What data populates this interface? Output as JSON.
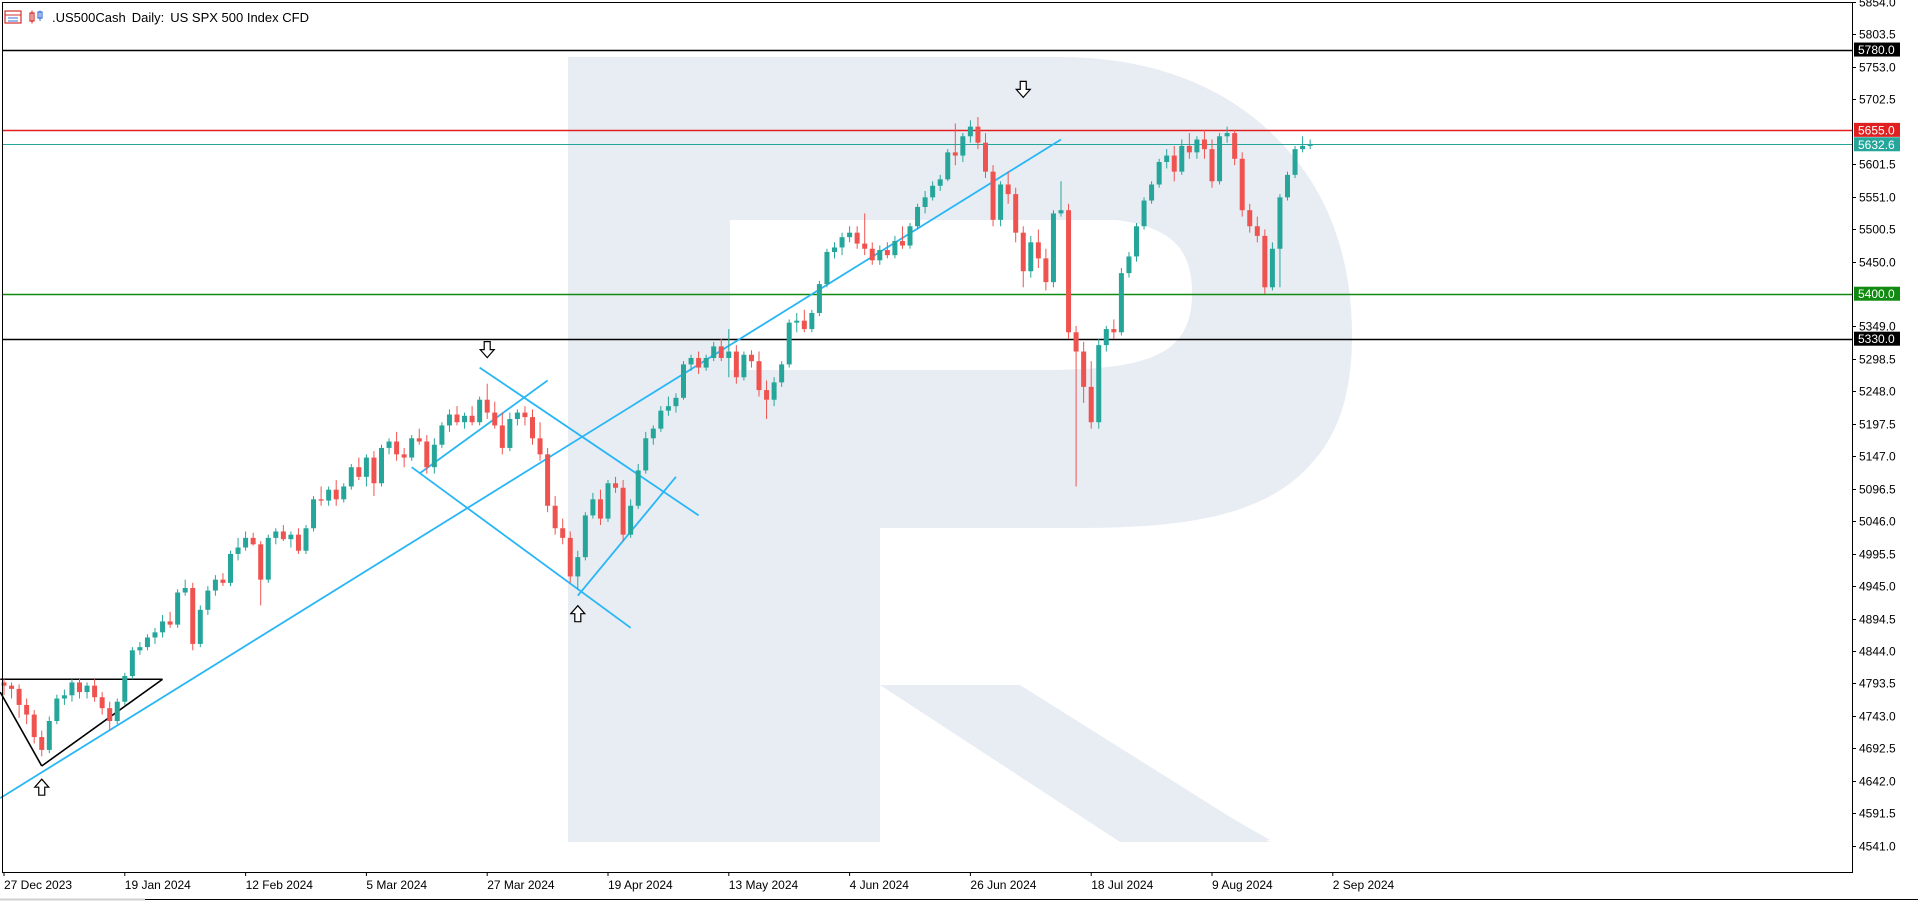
{
  "header": {
    "symbol": ".US500Cash",
    "timeframe": "Daily:",
    "description": "US SPX 500 Index CFD"
  },
  "chart_data": {
    "type": "candlestick",
    "symbol": ".US500Cash",
    "timeframe": "Daily",
    "ylim": [
      4500,
      5854
    ],
    "y_ticks": [
      "5854.0",
      "5803.5",
      "5753.0",
      "5702.5",
      "5601.5",
      "5551.0",
      "5500.5",
      "5450.0",
      "5349.0",
      "5298.5",
      "5248.0",
      "5197.5",
      "5147.0",
      "5096.5",
      "5046.0",
      "4995.5",
      "4945.0",
      "4894.5",
      "4844.0",
      "4793.5",
      "4743.0",
      "4692.5",
      "4642.0",
      "4591.5",
      "4541.0"
    ],
    "x_labels": [
      {
        "label": "27 Dec 2023",
        "index": 0
      },
      {
        "label": "19 Jan 2024",
        "index": 16
      },
      {
        "label": "12 Feb 2024",
        "index": 32
      },
      {
        "label": "5 Mar 2024",
        "index": 48
      },
      {
        "label": "27 Mar 2024",
        "index": 64
      },
      {
        "label": "19 Apr 2024",
        "index": 80
      },
      {
        "label": "13 May 2024",
        "index": 96
      },
      {
        "label": "4 Jun 2024",
        "index": 112
      },
      {
        "label": "26 Jun 2024",
        "index": 128
      },
      {
        "label": "18 Jul 2024",
        "index": 144
      },
      {
        "label": "9 Aug 2024",
        "index": 160
      },
      {
        "label": "2 Sep 2024",
        "index": 176
      }
    ],
    "levels": [
      {
        "value": 5780.0,
        "label": "5780.0",
        "color": "#000000",
        "label_bg": "#000000",
        "label_color": "#ffffff"
      },
      {
        "value": 5655.0,
        "label": "5655.0",
        "color": "#e02020",
        "label_bg": "#e02020",
        "label_color": "#ffffff"
      },
      {
        "value": 5632.6,
        "label": "5632.6",
        "color": "#26a69a",
        "label_bg": "#26a69a",
        "label_color": "#ffffff"
      },
      {
        "value": 5400.0,
        "label": "5400.0",
        "color": "#108a10",
        "label_bg": "#108a10",
        "label_color": "#ffffff"
      },
      {
        "value": 5330.0,
        "label": "5330.0",
        "color": "#000000",
        "label_bg": "#000000",
        "label_color": "#ffffff"
      }
    ],
    "colors": {
      "up": "#26a69a",
      "down": "#ef5350",
      "trendline": "#29b6f6",
      "pattern": "#000000",
      "watermark": "#e8edf4"
    },
    "candles": [
      [
        4795,
        4800,
        4775,
        4790
      ],
      [
        4790,
        4795,
        4770,
        4785
      ],
      [
        4785,
        4792,
        4740,
        4760
      ],
      [
        4760,
        4770,
        4730,
        4745
      ],
      [
        4745,
        4752,
        4700,
        4710
      ],
      [
        4710,
        4720,
        4680,
        4690
      ],
      [
        4690,
        4742,
        4685,
        4735
      ],
      [
        4735,
        4776,
        4730,
        4770
      ],
      [
        4770,
        4784,
        4760,
        4775
      ],
      [
        4775,
        4800,
        4765,
        4795
      ],
      [
        4795,
        4802,
        4770,
        4780
      ],
      [
        4780,
        4795,
        4770,
        4790
      ],
      [
        4790,
        4800,
        4765,
        4772
      ],
      [
        4772,
        4780,
        4745,
        4755
      ],
      [
        4755,
        4765,
        4720,
        4735
      ],
      [
        4735,
        4770,
        4730,
        4765
      ],
      [
        4765,
        4810,
        4760,
        4805
      ],
      [
        4805,
        4850,
        4800,
        4845
      ],
      [
        4845,
        4858,
        4838,
        4850
      ],
      [
        4850,
        4870,
        4845,
        4865
      ],
      [
        4865,
        4880,
        4855,
        4873
      ],
      [
        4873,
        4900,
        4865,
        4890
      ],
      [
        4890,
        4905,
        4880,
        4885
      ],
      [
        4885,
        4940,
        4880,
        4935
      ],
      [
        4935,
        4955,
        4930,
        4942
      ],
      [
        4942,
        4950,
        4845,
        4855
      ],
      [
        4855,
        4915,
        4850,
        4908
      ],
      [
        4908,
        4945,
        4900,
        4938
      ],
      [
        4938,
        4962,
        4930,
        4955
      ],
      [
        4955,
        4965,
        4945,
        4950
      ],
      [
        4950,
        5000,
        4945,
        4995
      ],
      [
        4995,
        5020,
        4985,
        5005
      ],
      [
        5005,
        5030,
        5000,
        5020
      ],
      [
        5020,
        5028,
        5008,
        5010
      ],
      [
        5010,
        5015,
        4915,
        4955
      ],
      [
        4955,
        5025,
        4950,
        5020
      ],
      [
        5020,
        5035,
        5010,
        5030
      ],
      [
        5030,
        5040,
        5015,
        5018
      ],
      [
        5018,
        5030,
        5005,
        5025
      ],
      [
        5025,
        5035,
        4995,
        5000
      ],
      [
        5000,
        5040,
        4995,
        5035
      ],
      [
        5035,
        5085,
        5030,
        5080
      ],
      [
        5080,
        5100,
        5070,
        5078
      ],
      [
        5078,
        5100,
        5070,
        5095
      ],
      [
        5095,
        5110,
        5070,
        5080
      ],
      [
        5080,
        5105,
        5075,
        5100
      ],
      [
        5100,
        5135,
        5095,
        5130
      ],
      [
        5130,
        5145,
        5110,
        5115
      ],
      [
        5115,
        5150,
        5100,
        5145
      ],
      [
        5145,
        5155,
        5085,
        5105
      ],
      [
        5105,
        5165,
        5100,
        5160
      ],
      [
        5160,
        5175,
        5150,
        5170
      ],
      [
        5170,
        5185,
        5140,
        5150
      ],
      [
        5150,
        5160,
        5130,
        5145
      ],
      [
        5145,
        5180,
        5140,
        5175
      ],
      [
        5175,
        5190,
        5165,
        5170
      ],
      [
        5170,
        5180,
        5120,
        5130
      ],
      [
        5130,
        5175,
        5120,
        5165
      ],
      [
        5165,
        5200,
        5160,
        5195
      ],
      [
        5195,
        5220,
        5185,
        5212
      ],
      [
        5212,
        5225,
        5195,
        5200
      ],
      [
        5200,
        5215,
        5190,
        5210
      ],
      [
        5210,
        5225,
        5195,
        5200
      ],
      [
        5200,
        5240,
        5195,
        5235
      ],
      [
        5235,
        5260,
        5205,
        5215
      ],
      [
        5215,
        5232,
        5190,
        5195
      ],
      [
        5195,
        5215,
        5150,
        5160
      ],
      [
        5160,
        5215,
        5155,
        5205
      ],
      [
        5205,
        5220,
        5195,
        5215
      ],
      [
        5215,
        5225,
        5195,
        5208
      ],
      [
        5208,
        5220,
        5165,
        5175
      ],
      [
        5175,
        5200,
        5140,
        5150
      ],
      [
        5150,
        5160,
        5060,
        5070
      ],
      [
        5070,
        5085,
        5025,
        5035
      ],
      [
        5035,
        5050,
        5010,
        5020
      ],
      [
        5020,
        5030,
        4950,
        4960
      ],
      [
        4960,
        5000,
        4940,
        4990
      ],
      [
        4990,
        5060,
        4985,
        5055
      ],
      [
        5055,
        5090,
        5050,
        5080
      ],
      [
        5080,
        5095,
        5040,
        5050
      ],
      [
        5050,
        5110,
        5045,
        5105
      ],
      [
        5105,
        5115,
        5090,
        5098
      ],
      [
        5098,
        5110,
        5015,
        5025
      ],
      [
        5025,
        5080,
        5020,
        5070
      ],
      [
        5070,
        5135,
        5065,
        5125
      ],
      [
        5125,
        5185,
        5120,
        5175
      ],
      [
        5175,
        5195,
        5165,
        5190
      ],
      [
        5190,
        5225,
        5185,
        5218
      ],
      [
        5218,
        5240,
        5210,
        5225
      ],
      [
        5225,
        5245,
        5215,
        5238
      ],
      [
        5238,
        5295,
        5235,
        5290
      ],
      [
        5290,
        5305,
        5280,
        5300
      ],
      [
        5300,
        5310,
        5275,
        5285
      ],
      [
        5285,
        5305,
        5280,
        5300
      ],
      [
        5300,
        5325,
        5295,
        5318
      ],
      [
        5318,
        5330,
        5295,
        5300
      ],
      [
        5300,
        5345,
        5270,
        5310
      ],
      [
        5310,
        5320,
        5260,
        5270
      ],
      [
        5270,
        5310,
        5265,
        5305
      ],
      [
        5305,
        5312,
        5285,
        5295
      ],
      [
        5295,
        5310,
        5240,
        5250
      ],
      [
        5250,
        5265,
        5205,
        5235
      ],
      [
        5235,
        5270,
        5225,
        5262
      ],
      [
        5262,
        5295,
        5255,
        5290
      ],
      [
        5290,
        5360,
        5285,
        5355
      ],
      [
        5355,
        5370,
        5340,
        5358
      ],
      [
        5358,
        5375,
        5340,
        5345
      ],
      [
        5345,
        5375,
        5340,
        5370
      ],
      [
        5370,
        5420,
        5365,
        5415
      ],
      [
        5415,
        5470,
        5410,
        5465
      ],
      [
        5465,
        5480,
        5455,
        5472
      ],
      [
        5472,
        5495,
        5460,
        5488
      ],
      [
        5488,
        5505,
        5480,
        5495
      ],
      [
        5495,
        5505,
        5470,
        5478
      ],
      [
        5478,
        5525,
        5460,
        5470
      ],
      [
        5470,
        5480,
        5445,
        5452
      ],
      [
        5452,
        5475,
        5445,
        5468
      ],
      [
        5468,
        5480,
        5455,
        5460
      ],
      [
        5460,
        5490,
        5455,
        5482
      ],
      [
        5482,
        5505,
        5470,
        5475
      ],
      [
        5475,
        5510,
        5470,
        5505
      ],
      [
        5505,
        5540,
        5500,
        5535
      ],
      [
        5535,
        5560,
        5525,
        5550
      ],
      [
        5550,
        5575,
        5545,
        5568
      ],
      [
        5568,
        5585,
        5560,
        5578
      ],
      [
        5578,
        5625,
        5575,
        5620
      ],
      [
        5620,
        5665,
        5600,
        5615
      ],
      [
        5615,
        5650,
        5605,
        5645
      ],
      [
        5645,
        5670,
        5635,
        5660
      ],
      [
        5660,
        5675,
        5625,
        5635
      ],
      [
        5635,
        5650,
        5580,
        5590
      ],
      [
        5590,
        5600,
        5505,
        5515
      ],
      [
        5515,
        5575,
        5505,
        5570
      ],
      [
        5570,
        5590,
        5540,
        5555
      ],
      [
        5555,
        5565,
        5480,
        5495
      ],
      [
        5495,
        5505,
        5410,
        5435
      ],
      [
        5435,
        5490,
        5425,
        5480
      ],
      [
        5480,
        5500,
        5440,
        5455
      ],
      [
        5455,
        5470,
        5405,
        5418
      ],
      [
        5418,
        5530,
        5410,
        5525
      ],
      [
        5525,
        5575,
        5520,
        5530
      ],
      [
        5530,
        5540,
        5330,
        5340
      ],
      [
        5340,
        5350,
        5100,
        5310
      ],
      [
        5310,
        5325,
        5230,
        5255
      ],
      [
        5255,
        5295,
        5190,
        5200
      ],
      [
        5200,
        5330,
        5190,
        5320
      ],
      [
        5320,
        5350,
        5310,
        5345
      ],
      [
        5345,
        5360,
        5330,
        5340
      ],
      [
        5340,
        5440,
        5335,
        5432
      ],
      [
        5432,
        5465,
        5425,
        5458
      ],
      [
        5458,
        5510,
        5450,
        5505
      ],
      [
        5505,
        5550,
        5500,
        5545
      ],
      [
        5545,
        5575,
        5540,
        5570
      ],
      [
        5570,
        5610,
        5565,
        5605
      ],
      [
        5605,
        5625,
        5595,
        5615
      ],
      [
        5615,
        5630,
        5575,
        5590
      ],
      [
        5590,
        5640,
        5585,
        5630
      ],
      [
        5630,
        5650,
        5610,
        5620
      ],
      [
        5620,
        5645,
        5610,
        5640
      ],
      [
        5640,
        5655,
        5610,
        5625
      ],
      [
        5625,
        5640,
        5565,
        5575
      ],
      [
        5575,
        5650,
        5570,
        5645
      ],
      [
        5645,
        5660,
        5635,
        5650
      ],
      [
        5650,
        5655,
        5600,
        5610
      ],
      [
        5610,
        5620,
        5520,
        5530
      ],
      [
        5530,
        5540,
        5495,
        5505
      ],
      [
        5505,
        5520,
        5480,
        5490
      ],
      [
        5490,
        5500,
        5400,
        5410
      ],
      [
        5410,
        5480,
        5405,
        5470
      ],
      [
        5470,
        5555,
        5410,
        5550
      ],
      [
        5550,
        5590,
        5545,
        5585
      ],
      [
        5585,
        5630,
        5580,
        5625
      ],
      [
        5625,
        5645,
        5620,
        5630
      ],
      [
        5630,
        5640,
        5625,
        5633
      ]
    ],
    "arrows": [
      {
        "type": "up",
        "index": 5,
        "price": 4660
      },
      {
        "type": "down",
        "index": 64,
        "price": 5285
      },
      {
        "type": "up",
        "index": 76,
        "price": 4930
      },
      {
        "type": "down",
        "index": 135,
        "price": 5690
      }
    ],
    "trendlines": [
      {
        "color": "trendline",
        "points": [
          [
            -0.5,
            4615
          ],
          [
            140,
            5640
          ]
        ]
      },
      {
        "color": "trendline",
        "points": [
          [
            55,
            5120
          ],
          [
            72,
            5265
          ]
        ]
      },
      {
        "color": "trendline",
        "points": [
          [
            63,
            5285
          ],
          [
            92,
            5055
          ]
        ]
      },
      {
        "color": "trendline",
        "points": [
          [
            54,
            5130
          ],
          [
            83,
            4880
          ]
        ]
      },
      {
        "color": "trendline",
        "points": [
          [
            76,
            4930
          ],
          [
            89,
            5115
          ]
        ]
      },
      {
        "color": "pattern",
        "points": [
          [
            -0.5,
            4800
          ],
          [
            21,
            4800
          ]
        ]
      },
      {
        "color": "pattern",
        "points": [
          [
            -0.5,
            4780
          ],
          [
            5,
            4665
          ]
        ]
      },
      {
        "color": "pattern",
        "points": [
          [
            5,
            4665
          ],
          [
            21,
            4800
          ]
        ]
      }
    ]
  }
}
